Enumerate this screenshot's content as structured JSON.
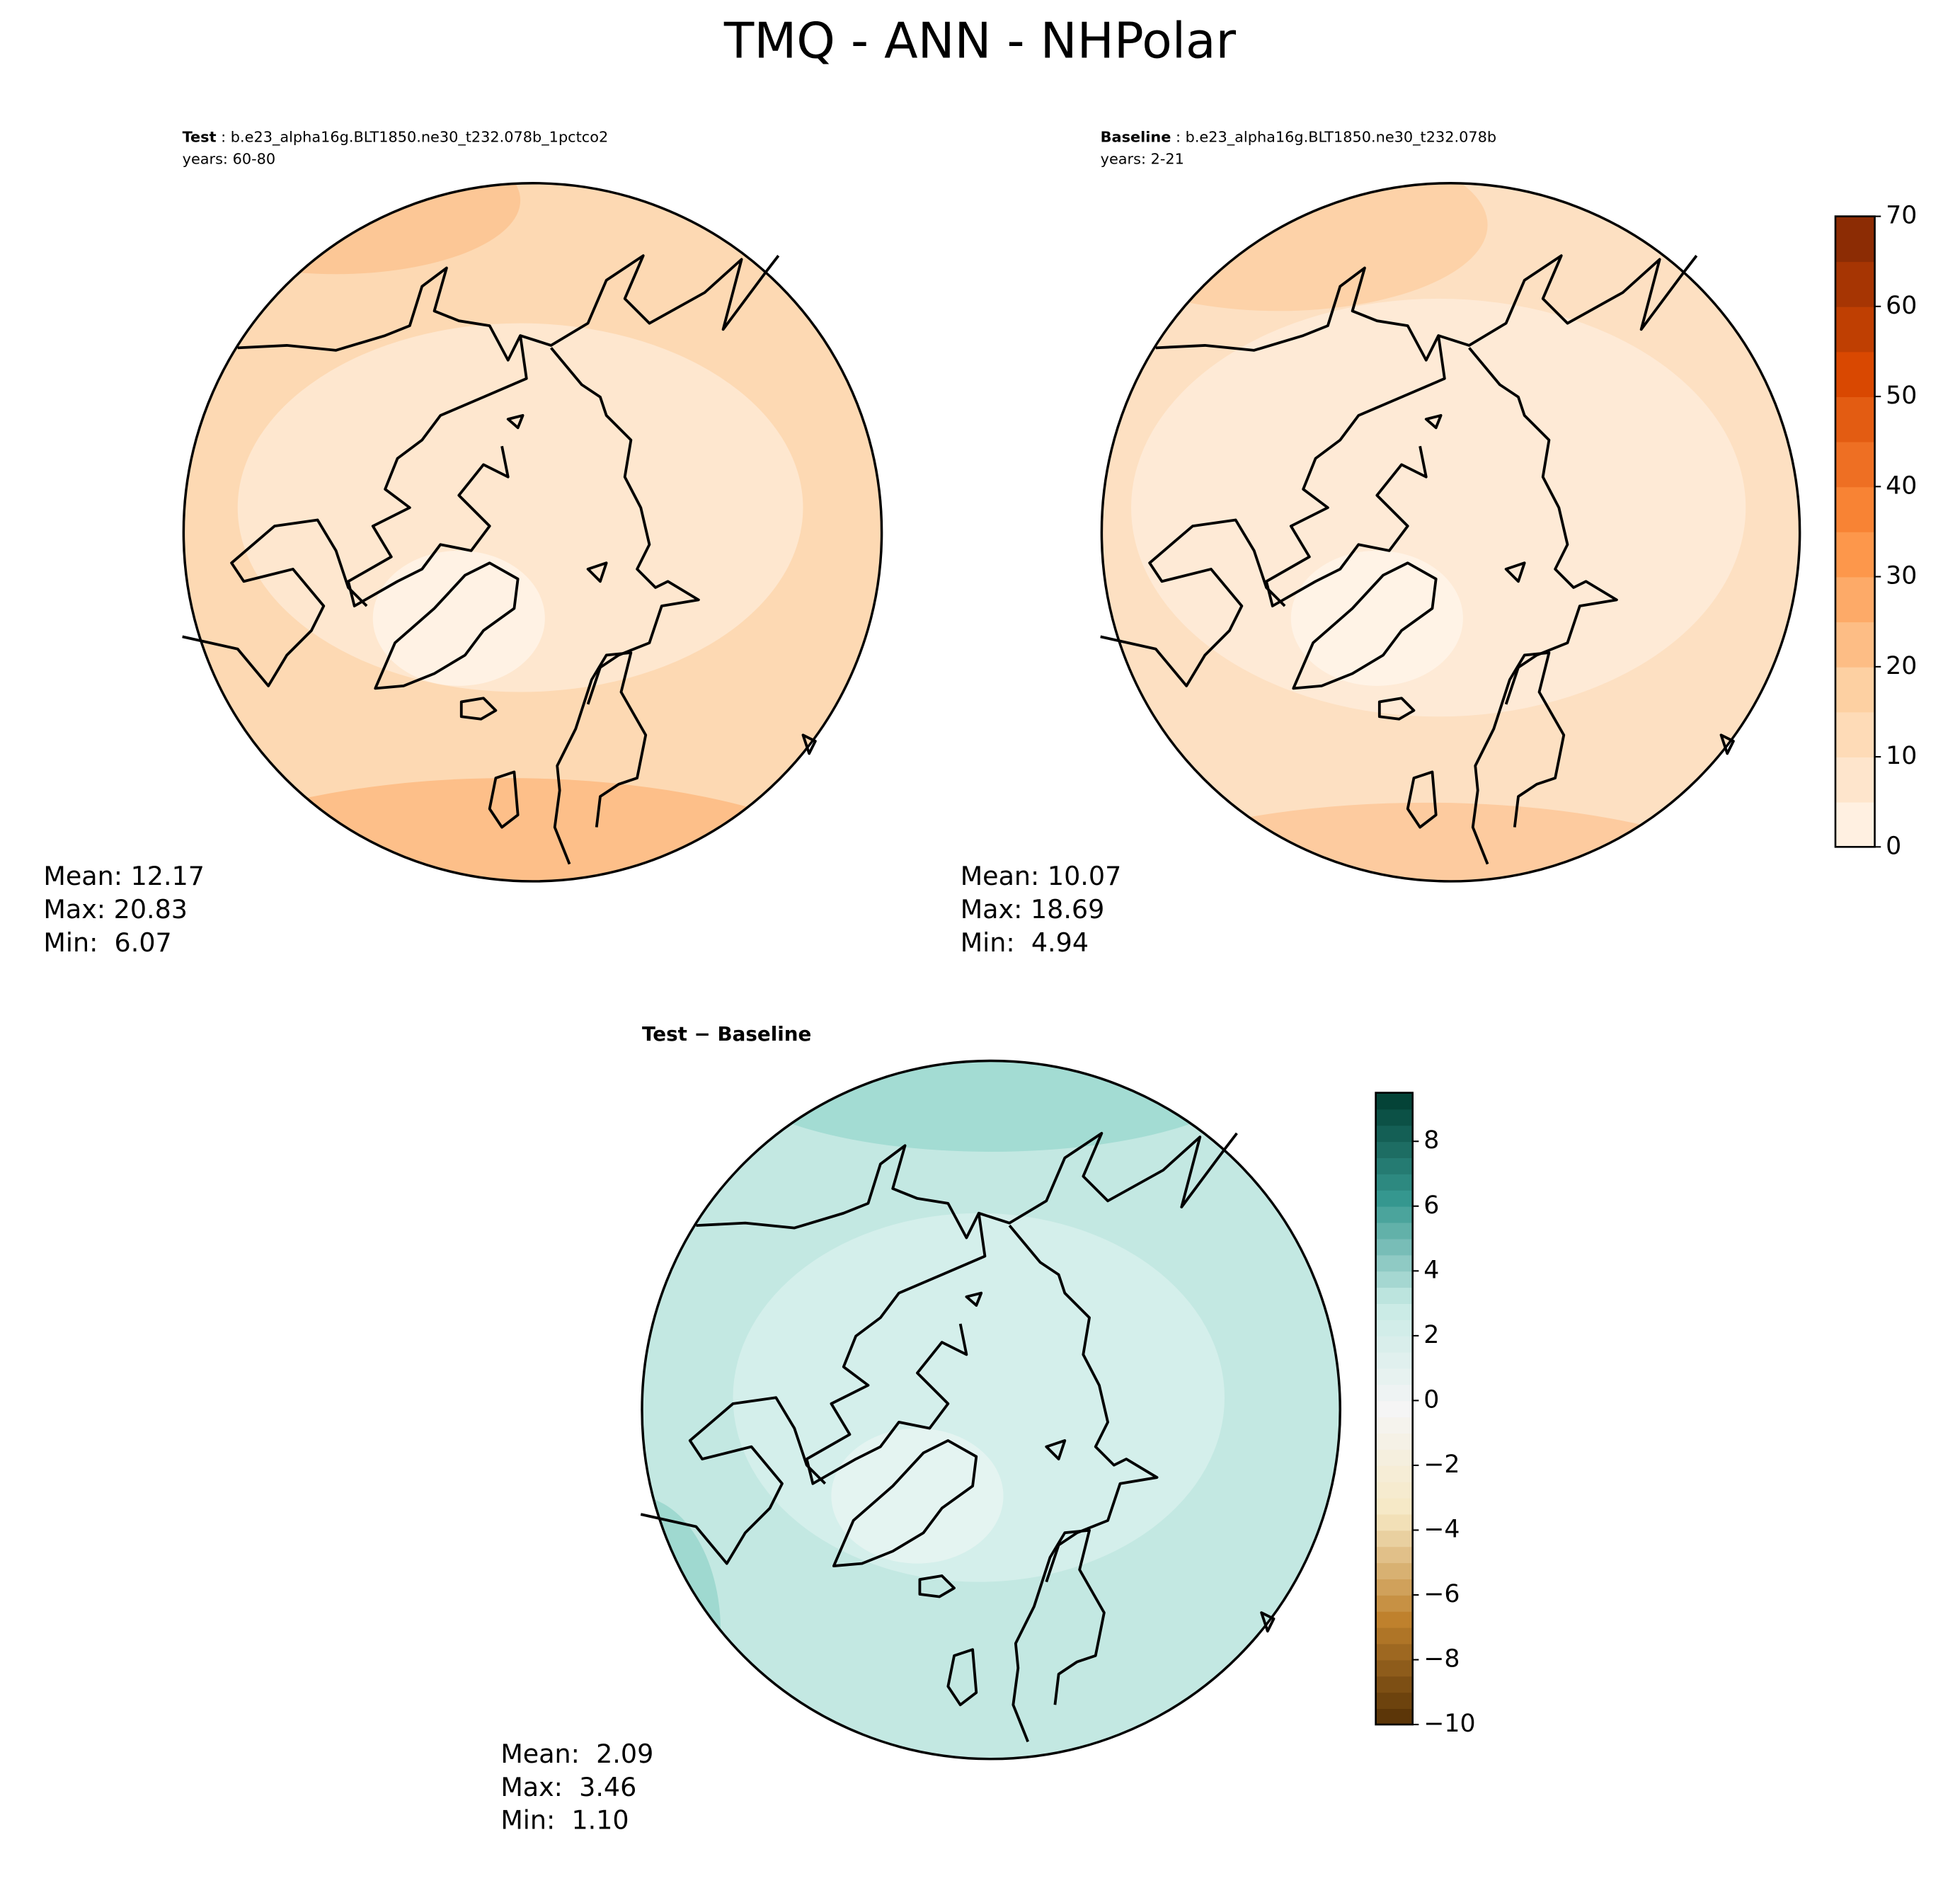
{
  "title": "TMQ - ANN - NHPolar",
  "panels": [
    {
      "label": "Test",
      "description": " : b.e23_alpha16g.BLT1850.ne30_t232.078b_1pctco2",
      "years": "years: 60-80",
      "stats": [
        "Mean: 12.17",
        "Max: 20.83",
        "Min:  6.07"
      ]
    },
    {
      "label": "Baseline",
      "description": " : b.e23_alpha16g.BLT1850.ne30_t232.078b",
      "years": "years: 2-21",
      "stats": [
        "Mean: 10.07",
        "Max: 18.69",
        "Min:  4.94"
      ]
    },
    {
      "label": "Test − Baseline",
      "stats": [
        "Mean:  2.09",
        "Max:  3.46",
        "Min:  1.10"
      ]
    }
  ],
  "colorbars": [
    {
      "lim": [
        0,
        70
      ],
      "step": 5,
      "ticks": [
        0,
        10,
        20,
        30,
        40,
        50,
        60,
        70
      ],
      "colors": [
        "#fff5eb",
        "#fdd0a2",
        "#fd8d3c",
        "#d94801",
        "#7f2704"
      ]
    },
    {
      "lim": [
        -10,
        9.5
      ],
      "step": 0.5,
      "ticks": [
        {
          "value": -10,
          "label": "−10"
        },
        {
          "value": -8,
          "label": "−8"
        },
        {
          "value": -6,
          "label": "−6"
        },
        {
          "value": -4,
          "label": "−4"
        },
        {
          "value": -2,
          "label": "−2"
        },
        0,
        2,
        4,
        6,
        8
      ],
      "colors": [
        "#543005",
        "#bf812d",
        "#f6e8c3",
        "#f5f5f5",
        "#c7eae5",
        "#35978f",
        "#003c30"
      ]
    }
  ]
}
